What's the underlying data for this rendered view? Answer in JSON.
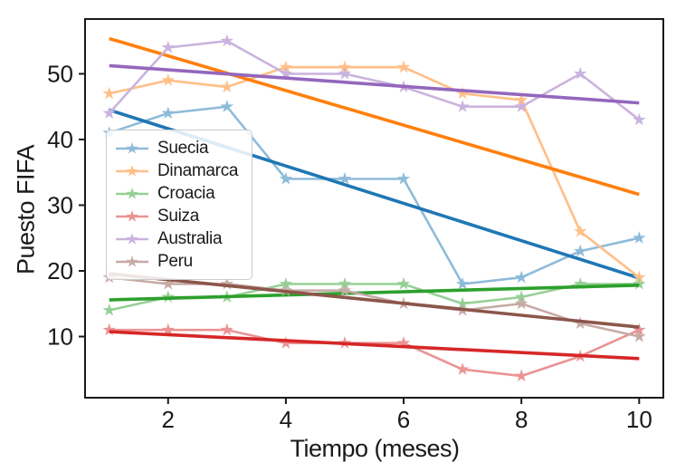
{
  "chart_data": {
    "type": "line",
    "title": "",
    "xlabel": "Tiempo (meses)",
    "ylabel": "Puesto FIFA",
    "x": [
      1,
      2,
      3,
      4,
      5,
      6,
      7,
      8,
      9,
      10
    ],
    "series": [
      {
        "name": "Suecia",
        "color": "#1f77b4",
        "values": [
          41,
          44,
          45,
          34,
          34,
          34,
          18,
          19,
          23,
          25
        ],
        "trend": {
          "slope": -2.842,
          "intercept": 47.333
        }
      },
      {
        "name": "Dinamarca",
        "color": "#ff7f0e",
        "values": [
          47,
          49,
          48,
          51,
          51,
          51,
          47,
          46,
          26,
          19
        ],
        "trend": {
          "slope": -2.636,
          "intercept": 58.0
        }
      },
      {
        "name": "Croacia",
        "color": "#2ca02c",
        "values": [
          14,
          16,
          16,
          18,
          18,
          18,
          15,
          16,
          18,
          18
        ],
        "trend": {
          "slope": 0.248,
          "intercept": 15.333
        }
      },
      {
        "name": "Suiza",
        "color": "#d62728",
        "values": [
          11,
          11,
          11,
          9,
          9,
          9,
          5,
          4,
          7,
          11
        ],
        "trend": {
          "slope": -0.455,
          "intercept": 11.2
        }
      },
      {
        "name": "Australia",
        "color": "#9467bd",
        "values": [
          44,
          54,
          55,
          50,
          50,
          48,
          45,
          45,
          50,
          43
        ],
        "trend": {
          "slope": -0.63,
          "intercept": 51.867
        }
      },
      {
        "name": "Peru",
        "color": "#8c564b",
        "values": [
          19,
          18,
          18,
          17,
          17,
          15,
          14,
          15,
          12,
          10
        ],
        "trend": {
          "slope": -0.903,
          "intercept": 20.467
        }
      }
    ],
    "xticks": [
      2,
      4,
      6,
      8,
      10
    ],
    "yticks": [
      10,
      20,
      30,
      40,
      50
    ],
    "xlim": [
      0.59,
      10.41
    ],
    "ylim": [
      0.69,
      58.34
    ],
    "trend_x_range": [
      1,
      10
    ],
    "grid": false,
    "marker": "star",
    "scatter_alpha": 0.5,
    "legend": {
      "position": "upper-left-inset",
      "entries": [
        "Suecia",
        "Dinamarca",
        "Croacia",
        "Suiza",
        "Australia",
        "Peru"
      ]
    },
    "axis_color": "#1a1a1a"
  }
}
